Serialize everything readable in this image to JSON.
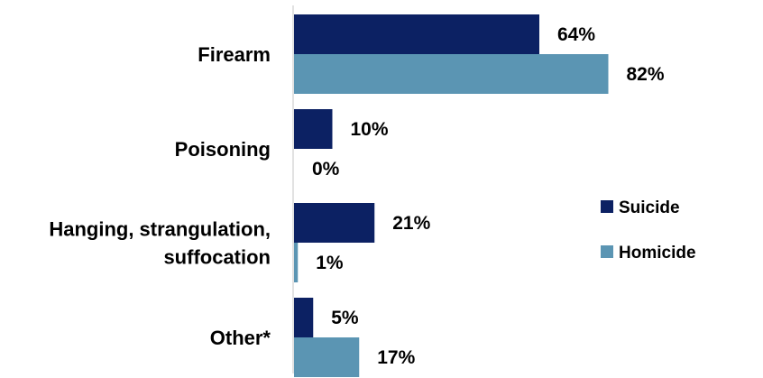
{
  "chart_data": {
    "type": "bar",
    "orientation": "horizontal",
    "categories": [
      [
        "Firearm"
      ],
      [
        "Poisoning"
      ],
      [
        "Hanging, strangulation,",
        "suffocation"
      ],
      [
        "Other*"
      ]
    ],
    "series": [
      {
        "name": "Suicide",
        "color": "#0c2163",
        "values": [
          64,
          10,
          21,
          5
        ],
        "labels": [
          "64%",
          "10%",
          "21%",
          "5%"
        ]
      },
      {
        "name": "Homicide",
        "color": "#5b95b3",
        "values": [
          82,
          0,
          1,
          17
        ],
        "labels": [
          "82%",
          "0%",
          "1%",
          "17%"
        ]
      }
    ],
    "unit": "%",
    "xlim": [
      0,
      100
    ],
    "grid": false,
    "legend_position": "right"
  }
}
